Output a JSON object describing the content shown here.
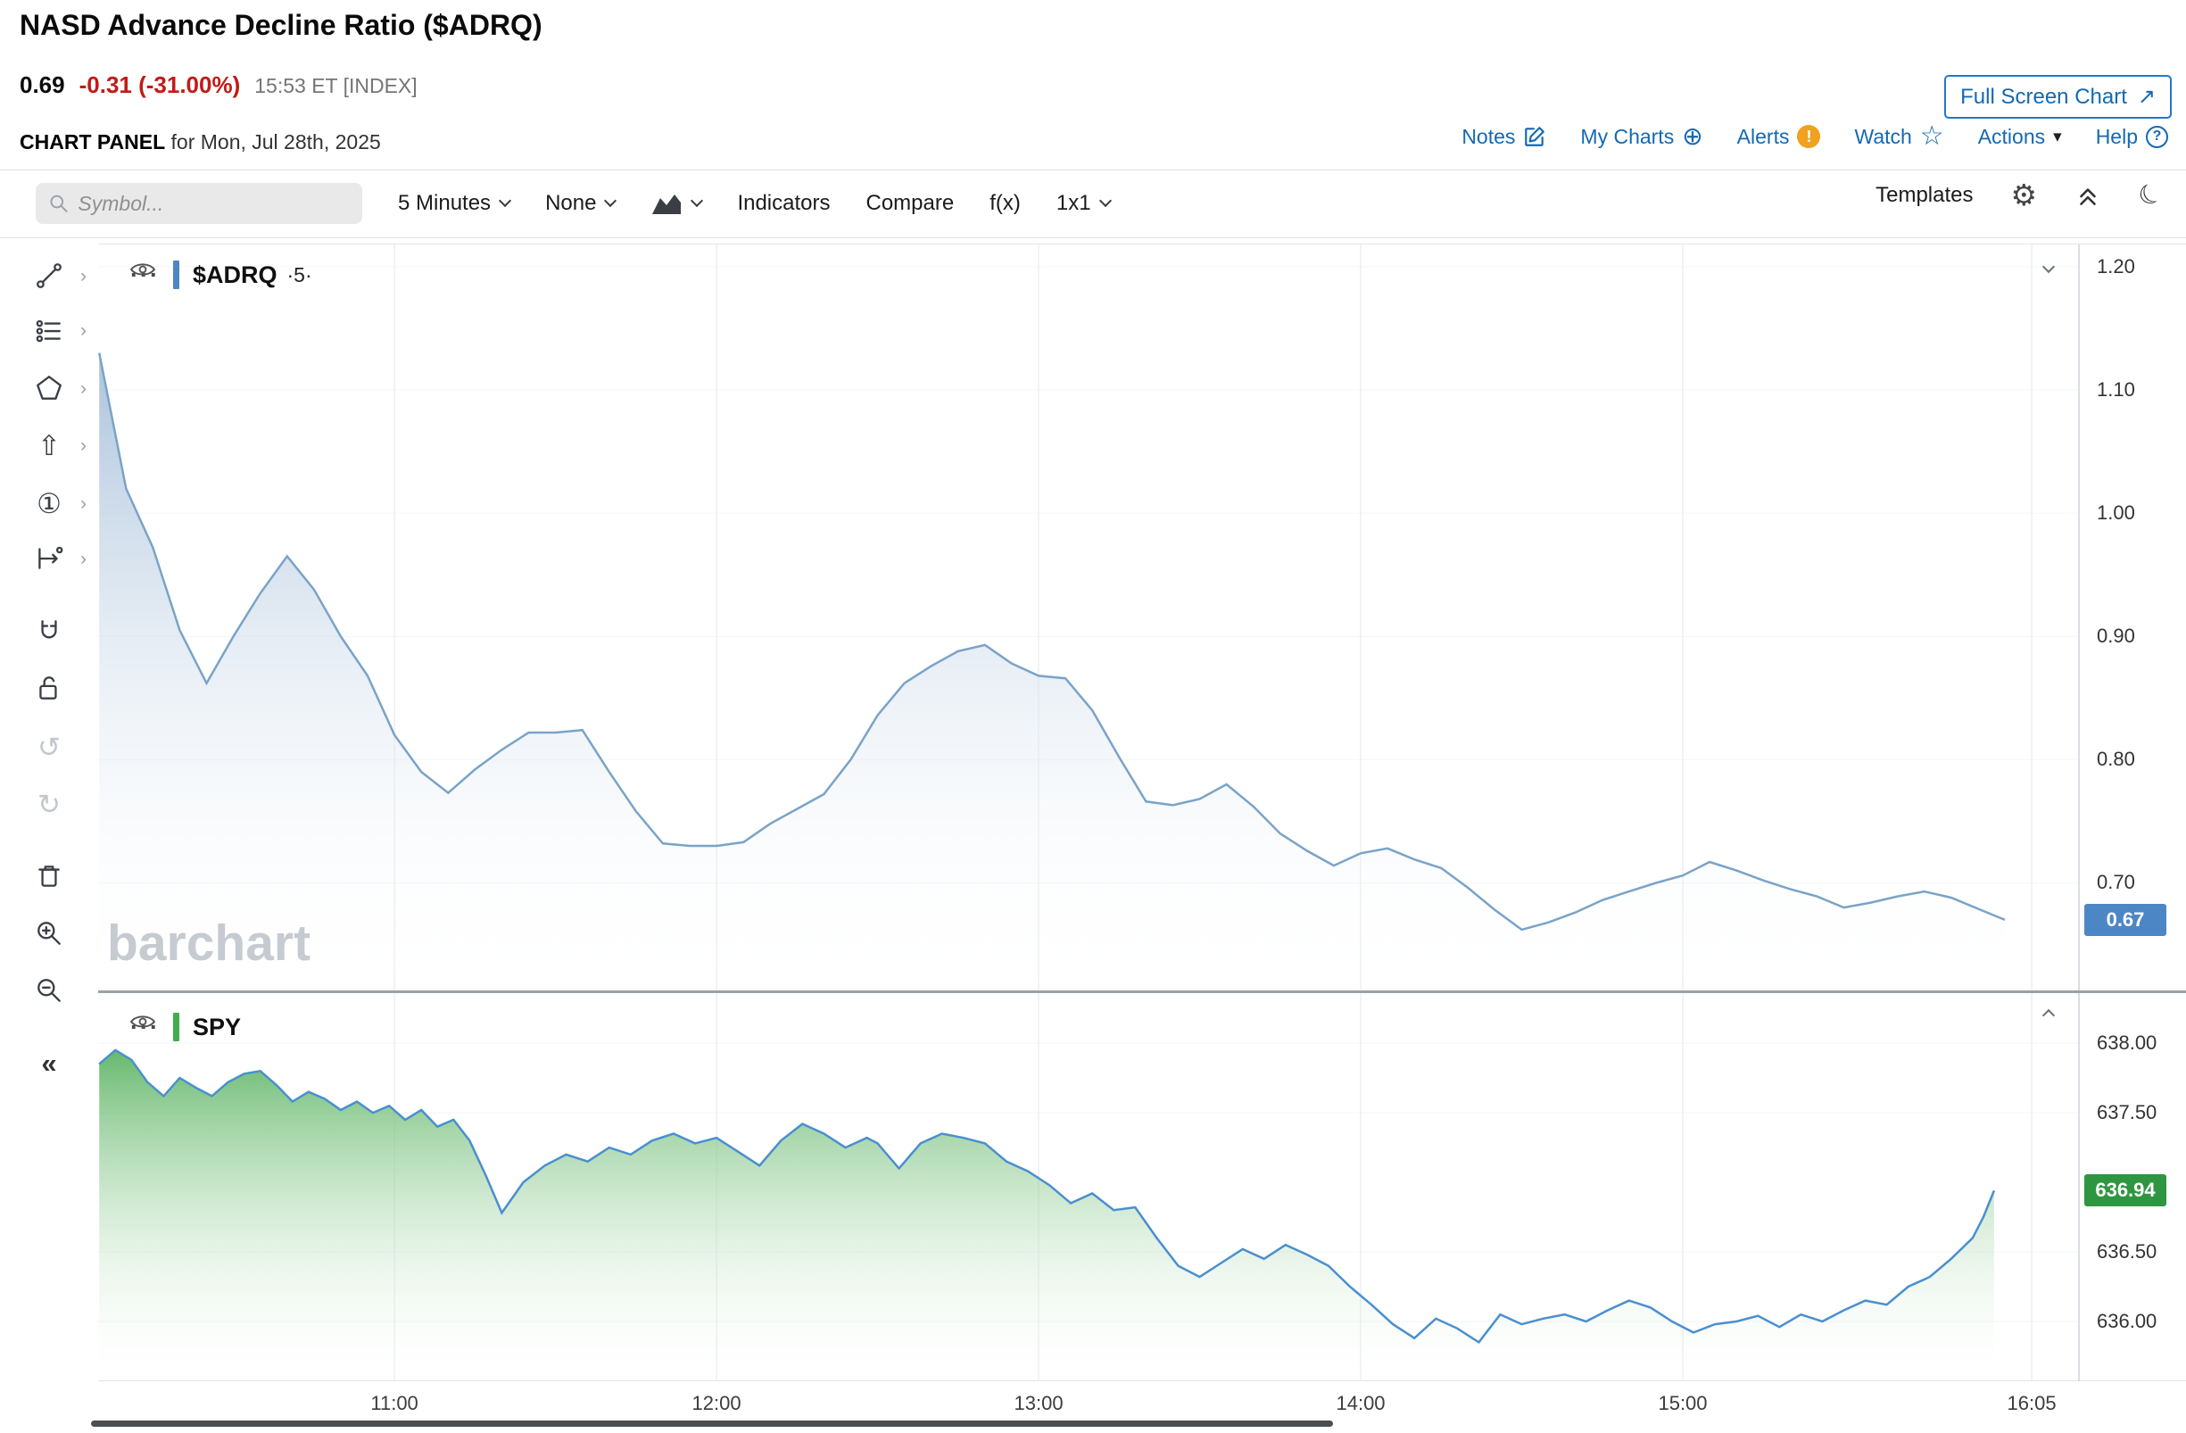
{
  "header": {
    "title": "NASD Advance Decline Ratio ($ADRQ)",
    "price": "0.69",
    "change": "-0.31 (-31.00%)",
    "timestamp": "15:53 ET [INDEX]",
    "panel_label": "CHART PANEL",
    "panel_date": "for Mon, Jul 28th, 2025",
    "full_screen_label": "Full Screen Chart",
    "links": {
      "notes": "Notes",
      "my_charts": "My Charts",
      "alerts": "Alerts",
      "watch": "Watch",
      "actions": "Actions",
      "help": "Help"
    }
  },
  "toolbar": {
    "symbol_placeholder": "Symbol...",
    "period": "5 Minutes",
    "drawing_tools": "None",
    "indicators": "Indicators",
    "compare": "Compare",
    "fx": "f(x)",
    "layout": "1x1",
    "templates": "Templates"
  },
  "icons": {
    "gear": "⚙",
    "moon": "☾",
    "star": "☆",
    "plus_circle": "⊕",
    "exclamation": "!",
    "question": "?",
    "caret_down": "▾",
    "undo": "↺",
    "redo": "↻",
    "arrow_up": "⇧",
    "circled_one": "①",
    "collapse_left": "«",
    "sub_menu": "›",
    "menu_dots": "···",
    "arrow_ne": "↗"
  },
  "watermark": "barchart",
  "colors": {
    "link_blue": "#1469b3",
    "change_red": "#c21b17",
    "alert_orange": "#f0a11e",
    "adrq_line": "#7aa3c8",
    "adrq_fill_top": "#a3bdd8",
    "adrq_badge": "#4d86c5",
    "adrq_legend_bar": "#4d86c5",
    "spy_line": "#4a8fd0",
    "spy_fill_top": "#56b15d",
    "spy_badge": "#2e9640",
    "spy_legend_bar": "#3fae4c"
  },
  "chart_data": [
    {
      "type": "area",
      "symbol": "$ADRQ",
      "legend": "$ADRQ",
      "period_label": "·5·",
      "x_unit": "minutes after 10:00 ET, 5-minute bars",
      "xlim": [
        4.8,
        373.8
      ],
      "x_ticks": [
        {
          "t": 60,
          "label": "11:00"
        },
        {
          "t": 120,
          "label": "12:00"
        },
        {
          "t": 180,
          "label": "13:00"
        },
        {
          "t": 240,
          "label": "14:00"
        },
        {
          "t": 300,
          "label": "15:00"
        },
        {
          "t": 365,
          "label": "16:05"
        }
      ],
      "ylim": [
        0.612,
        1.218
      ],
      "y_ticks": [
        {
          "v": 1.2,
          "label": "1.20"
        },
        {
          "v": 1.1,
          "label": "1.10"
        },
        {
          "v": 1.0,
          "label": "1.00"
        },
        {
          "v": 0.9,
          "label": "0.90"
        },
        {
          "v": 0.8,
          "label": "0.80"
        },
        {
          "v": 0.7,
          "label": "0.70"
        }
      ],
      "last_value": 0.67,
      "last_label": "0.67",
      "points": [
        [
          5,
          1.13
        ],
        [
          10,
          1.02
        ],
        [
          15,
          0.972
        ],
        [
          20,
          0.905
        ],
        [
          25,
          0.862
        ],
        [
          30,
          0.9
        ],
        [
          35,
          0.935
        ],
        [
          40,
          0.965
        ],
        [
          45,
          0.938
        ],
        [
          50,
          0.9
        ],
        [
          55,
          0.868
        ],
        [
          60,
          0.82
        ],
        [
          65,
          0.79
        ],
        [
          70,
          0.773
        ],
        [
          75,
          0.792
        ],
        [
          80,
          0.808
        ],
        [
          85,
          0.822
        ],
        [
          90,
          0.822
        ],
        [
          95,
          0.824
        ],
        [
          100,
          0.79
        ],
        [
          105,
          0.758
        ],
        [
          110,
          0.732
        ],
        [
          115,
          0.73
        ],
        [
          120,
          0.73
        ],
        [
          125,
          0.733
        ],
        [
          130,
          0.748
        ],
        [
          135,
          0.76
        ],
        [
          140,
          0.772
        ],
        [
          145,
          0.8
        ],
        [
          150,
          0.836
        ],
        [
          155,
          0.862
        ],
        [
          160,
          0.876
        ],
        [
          165,
          0.888
        ],
        [
          170,
          0.893
        ],
        [
          175,
          0.878
        ],
        [
          180,
          0.868
        ],
        [
          185,
          0.866
        ],
        [
          190,
          0.84
        ],
        [
          195,
          0.802
        ],
        [
          200,
          0.766
        ],
        [
          205,
          0.763
        ],
        [
          210,
          0.768
        ],
        [
          215,
          0.78
        ],
        [
          220,
          0.762
        ],
        [
          225,
          0.74
        ],
        [
          230,
          0.726
        ],
        [
          235,
          0.714
        ],
        [
          240,
          0.724
        ],
        [
          245,
          0.728
        ],
        [
          250,
          0.719
        ],
        [
          255,
          0.712
        ],
        [
          260,
          0.696
        ],
        [
          265,
          0.678
        ],
        [
          270,
          0.662
        ],
        [
          275,
          0.668
        ],
        [
          280,
          0.676
        ],
        [
          285,
          0.686
        ],
        [
          290,
          0.693
        ],
        [
          295,
          0.7
        ],
        [
          300,
          0.706
        ],
        [
          305,
          0.717
        ],
        [
          310,
          0.71
        ],
        [
          315,
          0.702
        ],
        [
          320,
          0.695
        ],
        [
          325,
          0.689
        ],
        [
          330,
          0.68
        ],
        [
          335,
          0.684
        ],
        [
          340,
          0.689
        ],
        [
          345,
          0.693
        ],
        [
          350,
          0.688
        ],
        [
          355,
          0.679
        ],
        [
          360,
          0.67
        ]
      ]
    },
    {
      "type": "area",
      "symbol": "SPY",
      "legend": "SPY",
      "x_unit": "minutes after 10:00 ET, 5-minute bars",
      "ylim": [
        635.57,
        638.36
      ],
      "y_ticks": [
        {
          "v": 638.0,
          "label": "638.00"
        },
        {
          "v": 637.5,
          "label": "637.50"
        },
        {
          "v": 636.5,
          "label": "636.50"
        },
        {
          "v": 636.0,
          "label": "636.00"
        }
      ],
      "last_value": 636.94,
      "last_label": "636.94",
      "points": [
        [
          5,
          637.85
        ],
        [
          8,
          637.95
        ],
        [
          11,
          637.88
        ],
        [
          14,
          637.72
        ],
        [
          17,
          637.62
        ],
        [
          20,
          637.75
        ],
        [
          23,
          637.68
        ],
        [
          26,
          637.62
        ],
        [
          29,
          637.72
        ],
        [
          32,
          637.78
        ],
        [
          35,
          637.8
        ],
        [
          38,
          637.7
        ],
        [
          41,
          637.58
        ],
        [
          44,
          637.65
        ],
        [
          47,
          637.6
        ],
        [
          50,
          637.52
        ],
        [
          53,
          637.58
        ],
        [
          56,
          637.5
        ],
        [
          59,
          637.55
        ],
        [
          62,
          637.45
        ],
        [
          65,
          637.52
        ],
        [
          68,
          637.4
        ],
        [
          71,
          637.45
        ],
        [
          74,
          637.3
        ],
        [
          77,
          637.05
        ],
        [
          80,
          636.78
        ],
        [
          84,
          637.0
        ],
        [
          88,
          637.12
        ],
        [
          92,
          637.2
        ],
        [
          96,
          637.15
        ],
        [
          100,
          637.25
        ],
        [
          104,
          637.2
        ],
        [
          108,
          637.3
        ],
        [
          112,
          637.35
        ],
        [
          116,
          637.28
        ],
        [
          120,
          637.32
        ],
        [
          124,
          637.22
        ],
        [
          128,
          637.12
        ],
        [
          132,
          637.3
        ],
        [
          136,
          637.42
        ],
        [
          140,
          637.35
        ],
        [
          144,
          637.25
        ],
        [
          148,
          637.32
        ],
        [
          150,
          637.28
        ],
        [
          154,
          637.1
        ],
        [
          158,
          637.28
        ],
        [
          162,
          637.35
        ],
        [
          166,
          637.32
        ],
        [
          170,
          637.28
        ],
        [
          174,
          637.15
        ],
        [
          178,
          637.08
        ],
        [
          182,
          636.98
        ],
        [
          186,
          636.85
        ],
        [
          190,
          636.92
        ],
        [
          194,
          636.8
        ],
        [
          198,
          636.82
        ],
        [
          202,
          636.6
        ],
        [
          206,
          636.4
        ],
        [
          210,
          636.32
        ],
        [
          214,
          636.42
        ],
        [
          218,
          636.52
        ],
        [
          222,
          636.45
        ],
        [
          226,
          636.55
        ],
        [
          230,
          636.48
        ],
        [
          234,
          636.4
        ],
        [
          238,
          636.25
        ],
        [
          242,
          636.12
        ],
        [
          246,
          635.98
        ],
        [
          250,
          635.88
        ],
        [
          254,
          636.02
        ],
        [
          258,
          635.95
        ],
        [
          262,
          635.85
        ],
        [
          266,
          636.05
        ],
        [
          270,
          635.98
        ],
        [
          274,
          636.02
        ],
        [
          278,
          636.05
        ],
        [
          282,
          636.0
        ],
        [
          286,
          636.08
        ],
        [
          290,
          636.15
        ],
        [
          294,
          636.1
        ],
        [
          298,
          636.0
        ],
        [
          302,
          635.92
        ],
        [
          306,
          635.98
        ],
        [
          310,
          636.0
        ],
        [
          314,
          636.04
        ],
        [
          318,
          635.96
        ],
        [
          322,
          636.05
        ],
        [
          326,
          636.0
        ],
        [
          330,
          636.08
        ],
        [
          334,
          636.15
        ],
        [
          338,
          636.12
        ],
        [
          342,
          636.25
        ],
        [
          346,
          636.32
        ],
        [
          350,
          636.45
        ],
        [
          354,
          636.6
        ],
        [
          356,
          636.75
        ],
        [
          358,
          636.94
        ]
      ]
    }
  ]
}
